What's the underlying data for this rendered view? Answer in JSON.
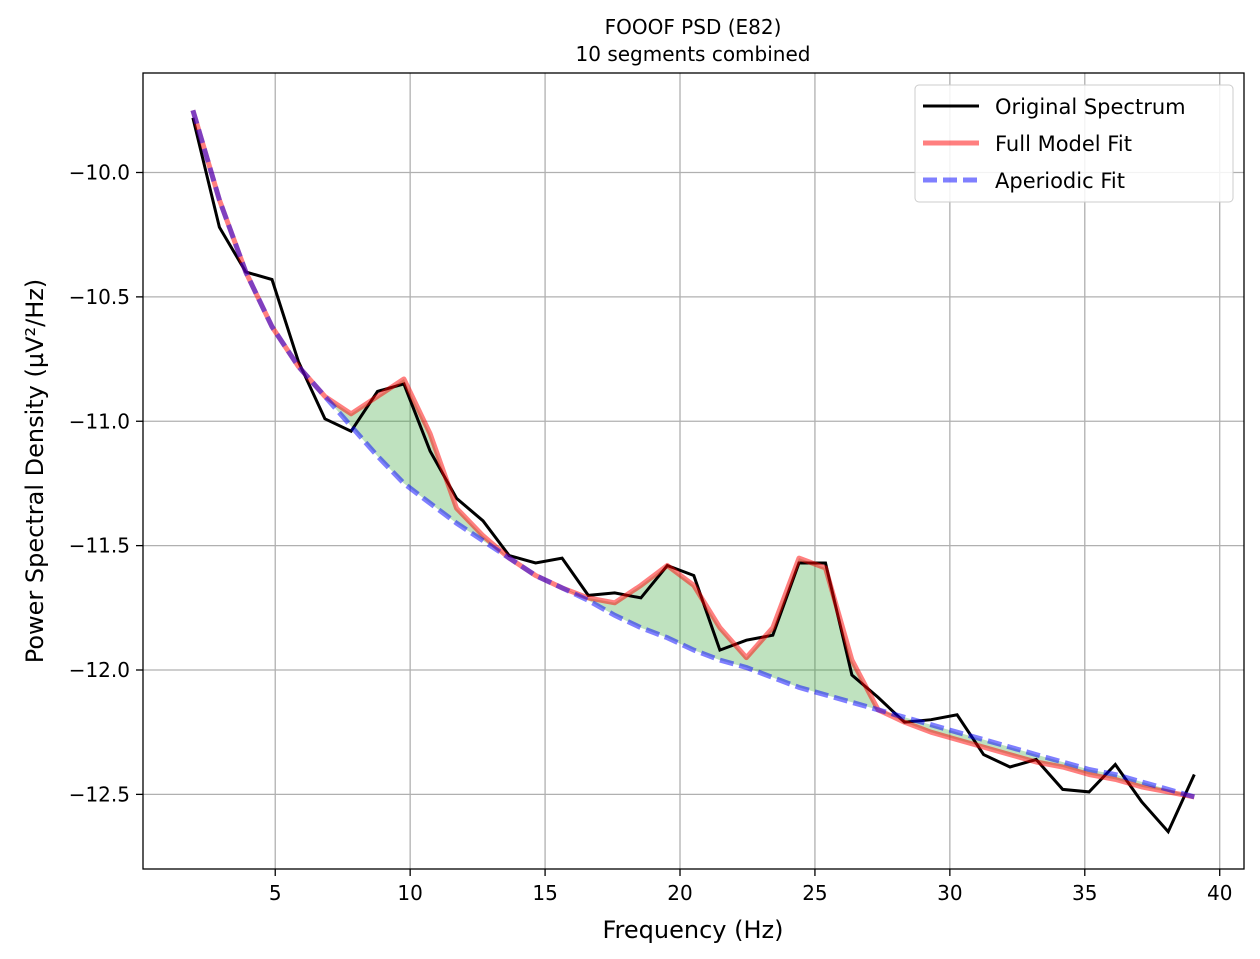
{
  "chart_data": {
    "type": "line",
    "title": "FOOOF PSD (E82)",
    "subtitle": "10 segments combined",
    "xlabel": "Frequency (Hz)",
    "ylabel": "Power Spectral Density (µV²/Hz)",
    "xlim": [
      0.1,
      40.9
    ],
    "ylim": [
      -12.8,
      -9.6
    ],
    "xticks": [
      5,
      10,
      15,
      20,
      25,
      30,
      35,
      40
    ],
    "xtick_labels": [
      "5",
      "10",
      "15",
      "20",
      "25",
      "30",
      "35",
      "40"
    ],
    "yticks": [
      -10.0,
      -10.5,
      -11.0,
      -11.5,
      -12.0,
      -12.5
    ],
    "ytick_labels": [
      "−10.0",
      "−10.5",
      "−11.0",
      "−11.5",
      "−12.0",
      "−12.5"
    ],
    "grid": true,
    "legend_position": "top-right",
    "x": [
      1.95,
      2.93,
      3.91,
      4.88,
      5.86,
      6.84,
      7.81,
      8.79,
      9.77,
      10.74,
      11.72,
      12.7,
      13.67,
      14.65,
      15.63,
      16.6,
      17.58,
      18.55,
      19.53,
      20.51,
      21.48,
      22.46,
      23.44,
      24.41,
      25.39,
      26.37,
      27.34,
      28.32,
      29.3,
      30.27,
      31.25,
      32.23,
      33.2,
      34.18,
      35.16,
      36.13,
      37.11,
      38.09,
      39.06
    ],
    "series": [
      {
        "name": "Original Spectrum",
        "color": "#000000",
        "style": "solid",
        "values": [
          -9.78,
          -10.22,
          -10.4,
          -10.43,
          -10.76,
          -10.99,
          -11.04,
          -10.88,
          -10.85,
          -11.12,
          -11.31,
          -11.4,
          -11.54,
          -11.57,
          -11.55,
          -11.7,
          -11.69,
          -11.71,
          -11.58,
          -11.62,
          -11.92,
          -11.88,
          -11.86,
          -11.57,
          -11.57,
          -12.02,
          -12.11,
          -12.21,
          -12.2,
          -12.18,
          -12.34,
          -12.39,
          -12.36,
          -12.48,
          -12.49,
          -12.38,
          -12.53,
          -12.65,
          -12.42
        ]
      },
      {
        "name": "Full Model Fit",
        "color": "#ff0000",
        "style": "solid",
        "values": [
          -9.75,
          -10.11,
          -10.4,
          -10.62,
          -10.78,
          -10.9,
          -10.97,
          -10.9,
          -10.83,
          -11.05,
          -11.35,
          -11.46,
          -11.55,
          -11.62,
          -11.67,
          -11.71,
          -11.73,
          -11.66,
          -11.58,
          -11.66,
          -11.83,
          -11.95,
          -11.83,
          -11.55,
          -11.59,
          -11.96,
          -12.16,
          -12.21,
          -12.25,
          -12.28,
          -12.31,
          -12.34,
          -12.37,
          -12.39,
          -12.42,
          -12.44,
          -12.47,
          -12.49,
          -12.51
        ]
      },
      {
        "name": "Aperiodic Fit",
        "color": "#0000ff",
        "style": "dashed",
        "values": [
          -9.75,
          -10.11,
          -10.4,
          -10.62,
          -10.78,
          -10.9,
          -11.02,
          -11.14,
          -11.25,
          -11.33,
          -11.41,
          -11.48,
          -11.55,
          -11.62,
          -11.67,
          -11.72,
          -11.78,
          -11.83,
          -11.87,
          -11.92,
          -11.96,
          -11.99,
          -12.03,
          -12.07,
          -12.1,
          -12.13,
          -12.16,
          -12.19,
          -12.22,
          -12.25,
          -12.28,
          -12.31,
          -12.34,
          -12.37,
          -12.4,
          -12.42,
          -12.45,
          -12.48,
          -12.51
        ]
      }
    ],
    "shaded_region": {
      "between": [
        "Full Model Fit",
        "Aperiodic Fit"
      ],
      "color": "#2ca02c",
      "opacity": 0.3
    }
  }
}
